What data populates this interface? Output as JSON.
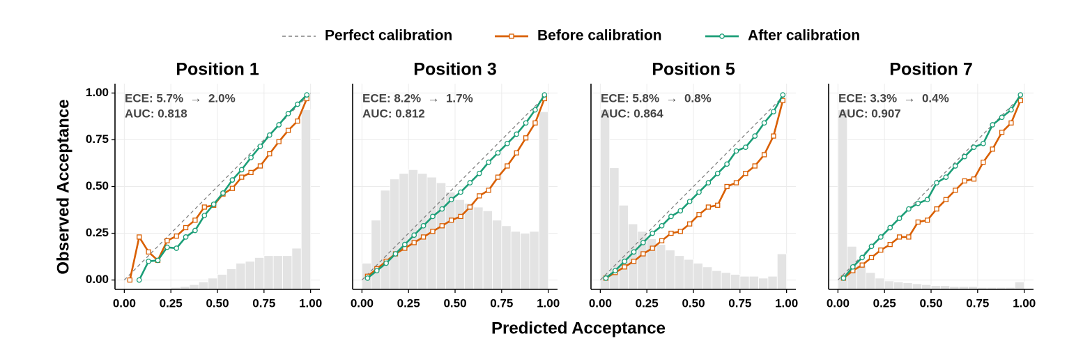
{
  "xlabel": "Predicted Acceptance",
  "ylabel": "Observed Acceptance",
  "chart_data": [
    {
      "type": "line",
      "title": "Position 1",
      "annotations": [
        "ECE: 5.7%  →  2.0%",
        "AUC: 0.818"
      ],
      "xlim": [
        -0.05,
        1.05
      ],
      "ylim": [
        -0.05,
        1.05
      ],
      "grid": true,
      "xticks": [
        {
          "value": 0,
          "label": "0.00"
        },
        {
          "value": 0.25,
          "label": "0.25"
        },
        {
          "value": 0.5,
          "label": "0.50"
        },
        {
          "value": 0.75,
          "label": "0.75"
        },
        {
          "value": 1,
          "label": "1.00"
        }
      ],
      "yticks": [
        {
          "value": 0,
          "label": "0.00"
        },
        {
          "value": 0.25,
          "label": "0.25"
        },
        {
          "value": 0.5,
          "label": "0.50"
        },
        {
          "value": 0.75,
          "label": "0.75"
        },
        {
          "value": 1,
          "label": "1.00"
        }
      ],
      "histogram": {
        "color": "#e3e3e3",
        "bins": [
          0,
          0.05,
          0.1,
          0.15,
          0.2,
          0.25,
          0.3,
          0.35,
          0.4,
          0.45,
          0.5,
          0.55,
          0.6,
          0.65,
          0.7,
          0.75,
          0.8,
          0.85,
          0.9,
          0.95,
          1
        ],
        "counts": [
          0,
          0,
          0,
          0,
          0,
          0.01,
          0.015,
          0.025,
          0.04,
          0.06,
          0.08,
          0.11,
          0.14,
          0.15,
          0.17,
          0.18,
          0.18,
          0.18,
          0.22,
          0.96
        ]
      },
      "x": [
        0.03,
        0.08,
        0.13,
        0.18,
        0.23,
        0.28,
        0.33,
        0.38,
        0.43,
        0.48,
        0.53,
        0.58,
        0.63,
        0.68,
        0.73,
        0.78,
        0.83,
        0.88,
        0.93,
        0.98
      ],
      "series": [
        {
          "name": "Perfect calibration",
          "color": "#808080",
          "style": "dashed",
          "x": [
            0,
            1
          ],
          "values": [
            0,
            1
          ]
        },
        {
          "name": "Before calibration",
          "color": "#d95f02",
          "marker": "square",
          "values": [
            0,
            0.23,
            0.15,
            0.105,
            0.21,
            0.235,
            0.28,
            0.32,
            0.39,
            0.4,
            0.46,
            0.49,
            0.55,
            0.575,
            0.61,
            0.675,
            0.74,
            0.8,
            0.85,
            0.97
          ]
        },
        {
          "name": "After calibration",
          "color": "#1b9e77",
          "marker": "circle",
          "values": [
            null,
            0,
            0.1,
            0.105,
            0.175,
            0.17,
            0.23,
            0.265,
            0.345,
            0.405,
            0.465,
            0.535,
            0.59,
            0.655,
            0.715,
            0.775,
            0.83,
            0.89,
            0.94,
            0.99
          ]
        }
      ]
    },
    {
      "type": "line",
      "title": "Position 3",
      "annotations": [
        "ECE: 8.2%  →  1.7%",
        "AUC: 0.812"
      ],
      "xlim": [
        -0.05,
        1.05
      ],
      "ylim": [
        -0.05,
        1.05
      ],
      "grid": true,
      "xticks": [
        {
          "value": 0,
          "label": "0.00"
        },
        {
          "value": 0.25,
          "label": "0.25"
        },
        {
          "value": 0.5,
          "label": "0.50"
        },
        {
          "value": 0.75,
          "label": "0.75"
        },
        {
          "value": 1,
          "label": "1.00"
        }
      ],
      "yticks": [
        0,
        0.25,
        0.5,
        0.75,
        1
      ],
      "histogram": {
        "color": "#e3e3e3",
        "bins": [
          0,
          0.05,
          0.1,
          0.15,
          0.2,
          0.25,
          0.3,
          0.35,
          0.4,
          0.45,
          0.5,
          0.55,
          0.6,
          0.65,
          0.7,
          0.75,
          0.8,
          0.85,
          0.9,
          0.95,
          1
        ],
        "counts": [
          0.14,
          0.37,
          0.53,
          0.59,
          0.62,
          0.64,
          0.62,
          0.6,
          0.57,
          0.52,
          0.48,
          0.46,
          0.44,
          0.42,
          0.37,
          0.34,
          0.31,
          0.3,
          0.31,
          0.95
        ]
      },
      "x": [
        0.03,
        0.08,
        0.13,
        0.18,
        0.23,
        0.28,
        0.33,
        0.38,
        0.43,
        0.48,
        0.53,
        0.58,
        0.63,
        0.68,
        0.73,
        0.78,
        0.83,
        0.88,
        0.93,
        0.98
      ],
      "series": [
        {
          "name": "Perfect calibration",
          "color": "#808080",
          "style": "dashed",
          "x": [
            0,
            1
          ],
          "values": [
            0,
            1
          ]
        },
        {
          "name": "Before calibration",
          "color": "#d95f02",
          "marker": "square",
          "values": [
            0.02,
            0.06,
            0.1,
            0.14,
            0.17,
            0.2,
            0.23,
            0.26,
            0.29,
            0.32,
            0.34,
            0.39,
            0.45,
            0.48,
            0.55,
            0.61,
            0.68,
            0.76,
            0.84,
            0.97
          ]
        },
        {
          "name": "After calibration",
          "color": "#1b9e77",
          "marker": "circle",
          "values": [
            0.01,
            0.05,
            0.09,
            0.14,
            0.19,
            0.24,
            0.29,
            0.34,
            0.38,
            0.43,
            0.47,
            0.52,
            0.57,
            0.63,
            0.68,
            0.73,
            0.78,
            0.84,
            0.91,
            0.99
          ]
        }
      ]
    },
    {
      "type": "line",
      "title": "Position 5",
      "annotations": [
        "ECE: 5.8%  →  0.8%",
        "AUC: 0.864"
      ],
      "xlim": [
        -0.05,
        1.05
      ],
      "ylim": [
        -0.05,
        1.05
      ],
      "grid": true,
      "xticks": [
        {
          "value": 0,
          "label": "0.00"
        },
        {
          "value": 0.25,
          "label": "0.25"
        },
        {
          "value": 0.5,
          "label": "0.50"
        },
        {
          "value": 0.75,
          "label": "0.75"
        },
        {
          "value": 1,
          "label": "1.00"
        }
      ],
      "yticks": [
        0,
        0.25,
        0.5,
        0.75,
        1
      ],
      "histogram": {
        "color": "#e3e3e3",
        "bins": [
          0,
          0.05,
          0.1,
          0.15,
          0.2,
          0.25,
          0.3,
          0.35,
          0.4,
          0.45,
          0.5,
          0.55,
          0.6,
          0.65,
          0.7,
          0.75,
          0.8,
          0.85,
          0.9,
          0.95,
          1
        ],
        "counts": [
          0.96,
          0.65,
          0.45,
          0.35,
          0.31,
          0.27,
          0.24,
          0.21,
          0.18,
          0.16,
          0.14,
          0.12,
          0.1,
          0.09,
          0.08,
          0.07,
          0.07,
          0.06,
          0.07,
          0.19
        ]
      },
      "x": [
        0.03,
        0.08,
        0.13,
        0.18,
        0.23,
        0.28,
        0.33,
        0.38,
        0.43,
        0.48,
        0.53,
        0.58,
        0.63,
        0.68,
        0.73,
        0.78,
        0.83,
        0.88,
        0.93,
        0.98
      ],
      "series": [
        {
          "name": "Perfect calibration",
          "color": "#808080",
          "style": "dashed",
          "x": [
            0,
            1
          ],
          "values": [
            0,
            1
          ]
        },
        {
          "name": "Before calibration",
          "color": "#d95f02",
          "marker": "square",
          "values": [
            0.01,
            0.04,
            0.07,
            0.1,
            0.14,
            0.17,
            0.21,
            0.25,
            0.26,
            0.3,
            0.35,
            0.39,
            0.4,
            0.5,
            0.52,
            0.57,
            0.61,
            0.67,
            0.77,
            0.96
          ]
        },
        {
          "name": "After calibration",
          "color": "#1b9e77",
          "marker": "circle",
          "values": [
            0.01,
            0.05,
            0.1,
            0.15,
            0.2,
            0.25,
            0.29,
            0.34,
            0.37,
            0.42,
            0.47,
            0.52,
            0.57,
            0.62,
            0.69,
            0.71,
            0.77,
            0.84,
            0.9,
            0.99
          ]
        }
      ]
    },
    {
      "type": "line",
      "title": "Position 7",
      "annotations": [
        "ECE: 3.3%  →  0.4%",
        "AUC: 0.907"
      ],
      "xlim": [
        -0.05,
        1.05
      ],
      "ylim": [
        -0.05,
        1.05
      ],
      "grid": true,
      "xticks": [
        {
          "value": 0,
          "label": "0.00"
        },
        {
          "value": 0.25,
          "label": "0.25"
        },
        {
          "value": 0.5,
          "label": "0.50"
        },
        {
          "value": 0.75,
          "label": "0.75"
        },
        {
          "value": 1,
          "label": "1.00"
        }
      ],
      "yticks": [
        0,
        0.25,
        0.5,
        0.75,
        1
      ],
      "histogram": {
        "color": "#e3e3e3",
        "bins": [
          0,
          0.05,
          0.1,
          0.15,
          0.2,
          0.25,
          0.3,
          0.35,
          0.4,
          0.45,
          0.5,
          0.55,
          0.6,
          0.65,
          0.7,
          0.75,
          0.8,
          0.85,
          0.9,
          0.95,
          1
        ],
        "counts": [
          0.96,
          0.23,
          0.13,
          0.09,
          0.06,
          0.045,
          0.04,
          0.035,
          0.03,
          0.025,
          0.02,
          0.02,
          0.015,
          0.015,
          0.015,
          0.01,
          0.01,
          0.01,
          0.01,
          0.04
        ]
      },
      "x": [
        0.03,
        0.08,
        0.13,
        0.18,
        0.23,
        0.28,
        0.33,
        0.38,
        0.43,
        0.48,
        0.53,
        0.58,
        0.63,
        0.68,
        0.73,
        0.78,
        0.83,
        0.88,
        0.93,
        0.98
      ],
      "series": [
        {
          "name": "Perfect calibration",
          "color": "#808080",
          "style": "dashed",
          "x": [
            0,
            1
          ],
          "values": [
            0,
            1
          ]
        },
        {
          "name": "Before calibration",
          "color": "#d95f02",
          "marker": "square",
          "values": [
            0.01,
            0.05,
            0.08,
            0.12,
            0.16,
            0.19,
            0.23,
            0.23,
            0.31,
            0.32,
            0.38,
            0.43,
            0.48,
            0.53,
            0.54,
            0.63,
            0.7,
            0.79,
            0.84,
            0.96
          ]
        },
        {
          "name": "After calibration",
          "color": "#1b9e77",
          "marker": "circle",
          "values": [
            0.01,
            0.07,
            0.12,
            0.18,
            0.23,
            0.28,
            0.33,
            0.38,
            0.41,
            0.43,
            0.52,
            0.55,
            0.61,
            0.66,
            0.71,
            0.73,
            0.83,
            0.87,
            0.91,
            0.99
          ]
        }
      ]
    }
  ]
}
